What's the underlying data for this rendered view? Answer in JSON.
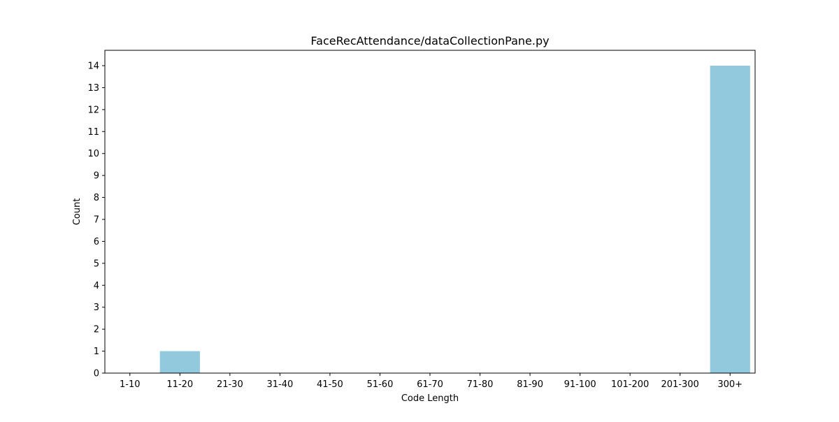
{
  "chart_data": {
    "type": "bar",
    "title": "FaceRecAttendance/dataCollectionPane.py",
    "xlabel": "Code Length",
    "ylabel": "Count",
    "categories": [
      "1-10",
      "11-20",
      "21-30",
      "31-40",
      "41-50",
      "51-60",
      "61-70",
      "71-80",
      "81-90",
      "91-100",
      "101-200",
      "201-300",
      "300+"
    ],
    "values": [
      0,
      1,
      0,
      0,
      0,
      0,
      0,
      0,
      0,
      0,
      0,
      0,
      14
    ],
    "ylim": [
      0,
      14.7
    ],
    "yticks": [
      0,
      1,
      2,
      3,
      4,
      5,
      6,
      7,
      8,
      9,
      10,
      11,
      12,
      13,
      14
    ],
    "bar_color": "#92c9dd",
    "grid": false,
    "legend": "none"
  }
}
